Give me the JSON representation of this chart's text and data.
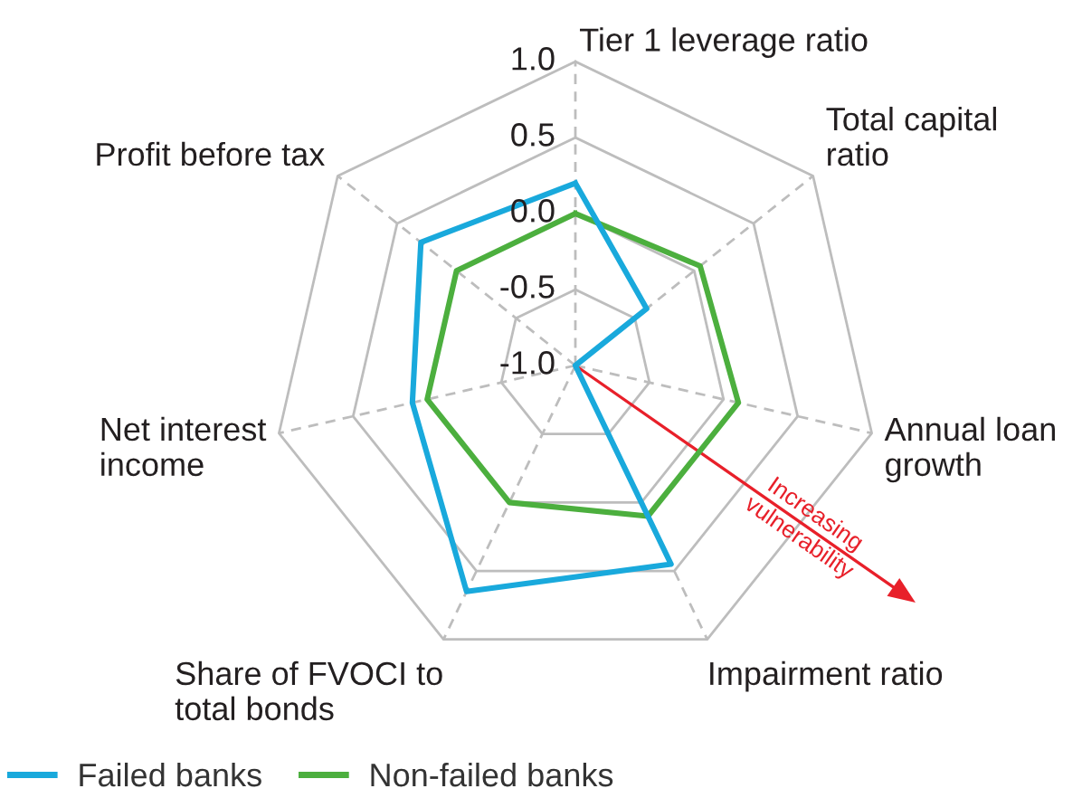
{
  "chart_data": {
    "type": "radar",
    "categories": [
      "Tier 1 leverage ratio",
      "Total capital\nratio",
      "Annual loan\ngrowth",
      "Impairment ratio",
      "Share of FVOCI to\ntotal bonds",
      "Net interest\nincome",
      "Profit before tax"
    ],
    "series": [
      {
        "name": "Failed banks",
        "color": "#19a9dc",
        "values": [
          0.2,
          -0.4,
          -1.0,
          0.45,
          0.65,
          0.1,
          0.3
        ]
      },
      {
        "name": "Non-failed banks",
        "color": "#4caf3e",
        "values": [
          0.0,
          0.05,
          0.1,
          0.1,
          0.0,
          0.0,
          0.0
        ]
      }
    ],
    "ylim": [
      -1,
      1
    ],
    "yticks": [
      {
        "value": -1,
        "label": "-1.0"
      },
      {
        "value": -0.5,
        "label": "-0.5"
      },
      {
        "value": 0,
        "label": "0.0"
      },
      {
        "value": 0.5,
        "label": "0.5"
      },
      {
        "value": 1,
        "label": "1.0"
      }
    ],
    "grid": true,
    "legend": "bottom left",
    "annotations": [
      "Increasing\nvulnerability"
    ]
  }
}
